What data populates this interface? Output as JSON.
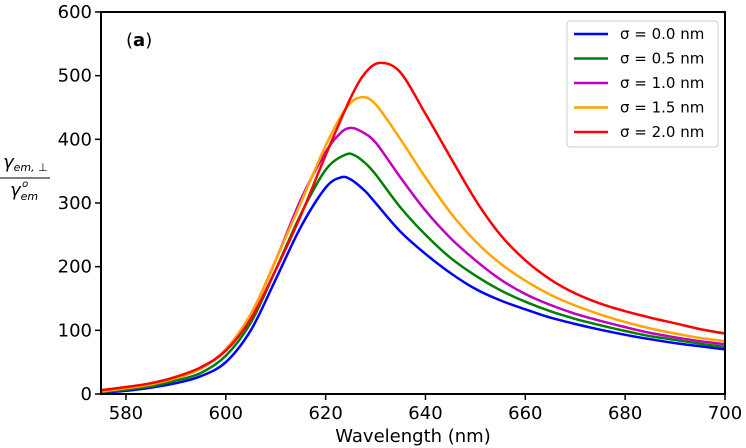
{
  "chart_data": {
    "type": "line",
    "panel_label": "(a)",
    "panel_letter": "a",
    "xlabel": "Wavelength (nm)",
    "ylabel_top": "γ_{em, ⊥}",
    "ylabel_bottom": "γ^o_{em}",
    "xlim": [
      575,
      700
    ],
    "ylim": [
      0,
      600
    ],
    "xticks": [
      580,
      600,
      620,
      640,
      660,
      680,
      700
    ],
    "yticks": [
      0,
      100,
      200,
      300,
      400,
      500,
      600
    ],
    "legend_position": "top-right",
    "series": [
      {
        "name": "σ = 0.0 nm",
        "color": "#0000ff",
        "x": [
          575,
          580,
          585,
          590,
          595,
          600,
          605,
          610,
          615,
          620,
          623,
          625,
          628,
          630,
          635,
          640,
          645,
          650,
          655,
          660,
          665,
          670,
          675,
          680,
          685,
          690,
          695,
          700
        ],
        "y": [
          2,
          5,
          10,
          17,
          28,
          50,
          100,
          180,
          262,
          324,
          340,
          337,
          318,
          300,
          255,
          220,
          190,
          165,
          147,
          133,
          120,
          110,
          101,
          93,
          86,
          80,
          75,
          70
        ]
      },
      {
        "name": "σ = 0.5 nm",
        "color": "#008000",
        "x": [
          575,
          580,
          585,
          590,
          595,
          600,
          605,
          610,
          615,
          620,
          624,
          626,
          628,
          630,
          635,
          640,
          645,
          650,
          655,
          660,
          665,
          670,
          675,
          680,
          685,
          690,
          695,
          700
        ],
        "y": [
          3,
          7,
          12,
          21,
          33,
          60,
          112,
          195,
          282,
          352,
          376,
          374,
          362,
          345,
          293,
          250,
          214,
          186,
          163,
          145,
          130,
          118,
          108,
          99,
          91,
          85,
          79,
          74
        ]
      },
      {
        "name": "σ = 1.0 nm",
        "color": "#bf00bf",
        "x": [
          575,
          580,
          585,
          590,
          595,
          600,
          605,
          610,
          615,
          620,
          623,
          625,
          627,
          630,
          635,
          640,
          645,
          650,
          655,
          660,
          665,
          670,
          675,
          680,
          685,
          690,
          695,
          700
        ],
        "y": [
          4,
          9,
          15,
          25,
          40,
          70,
          125,
          210,
          305,
          380,
          410,
          418,
          413,
          395,
          340,
          288,
          245,
          210,
          180,
          157,
          140,
          126,
          115,
          105,
          96,
          89,
          83,
          78
        ]
      },
      {
        "name": "σ = 1.5 nm",
        "color": "#ffa500",
        "x": [
          575,
          580,
          585,
          590,
          595,
          600,
          605,
          610,
          615,
          620,
          624,
          627,
          630,
          635,
          640,
          645,
          650,
          655,
          660,
          665,
          670,
          675,
          680,
          685,
          690,
          695,
          700
        ],
        "y": [
          4,
          9,
          15,
          25,
          40,
          70,
          125,
          210,
          300,
          390,
          448,
          466,
          455,
          400,
          340,
          285,
          240,
          205,
          178,
          156,
          139,
          125,
          113,
          103,
          95,
          88,
          83
        ]
      },
      {
        "name": "σ = 2.0 nm",
        "color": "#ff0000",
        "x": [
          575,
          580,
          585,
          590,
          595,
          600,
          605,
          610,
          615,
          620,
          625,
          628,
          631,
          635,
          640,
          645,
          650,
          655,
          660,
          665,
          670,
          675,
          680,
          685,
          690,
          695,
          700
        ],
        "y": [
          6,
          11,
          17,
          27,
          42,
          68,
          118,
          195,
          280,
          375,
          465,
          505,
          520,
          505,
          440,
          372,
          305,
          250,
          210,
          180,
          158,
          142,
          130,
          120,
          111,
          102,
          95
        ]
      }
    ]
  }
}
